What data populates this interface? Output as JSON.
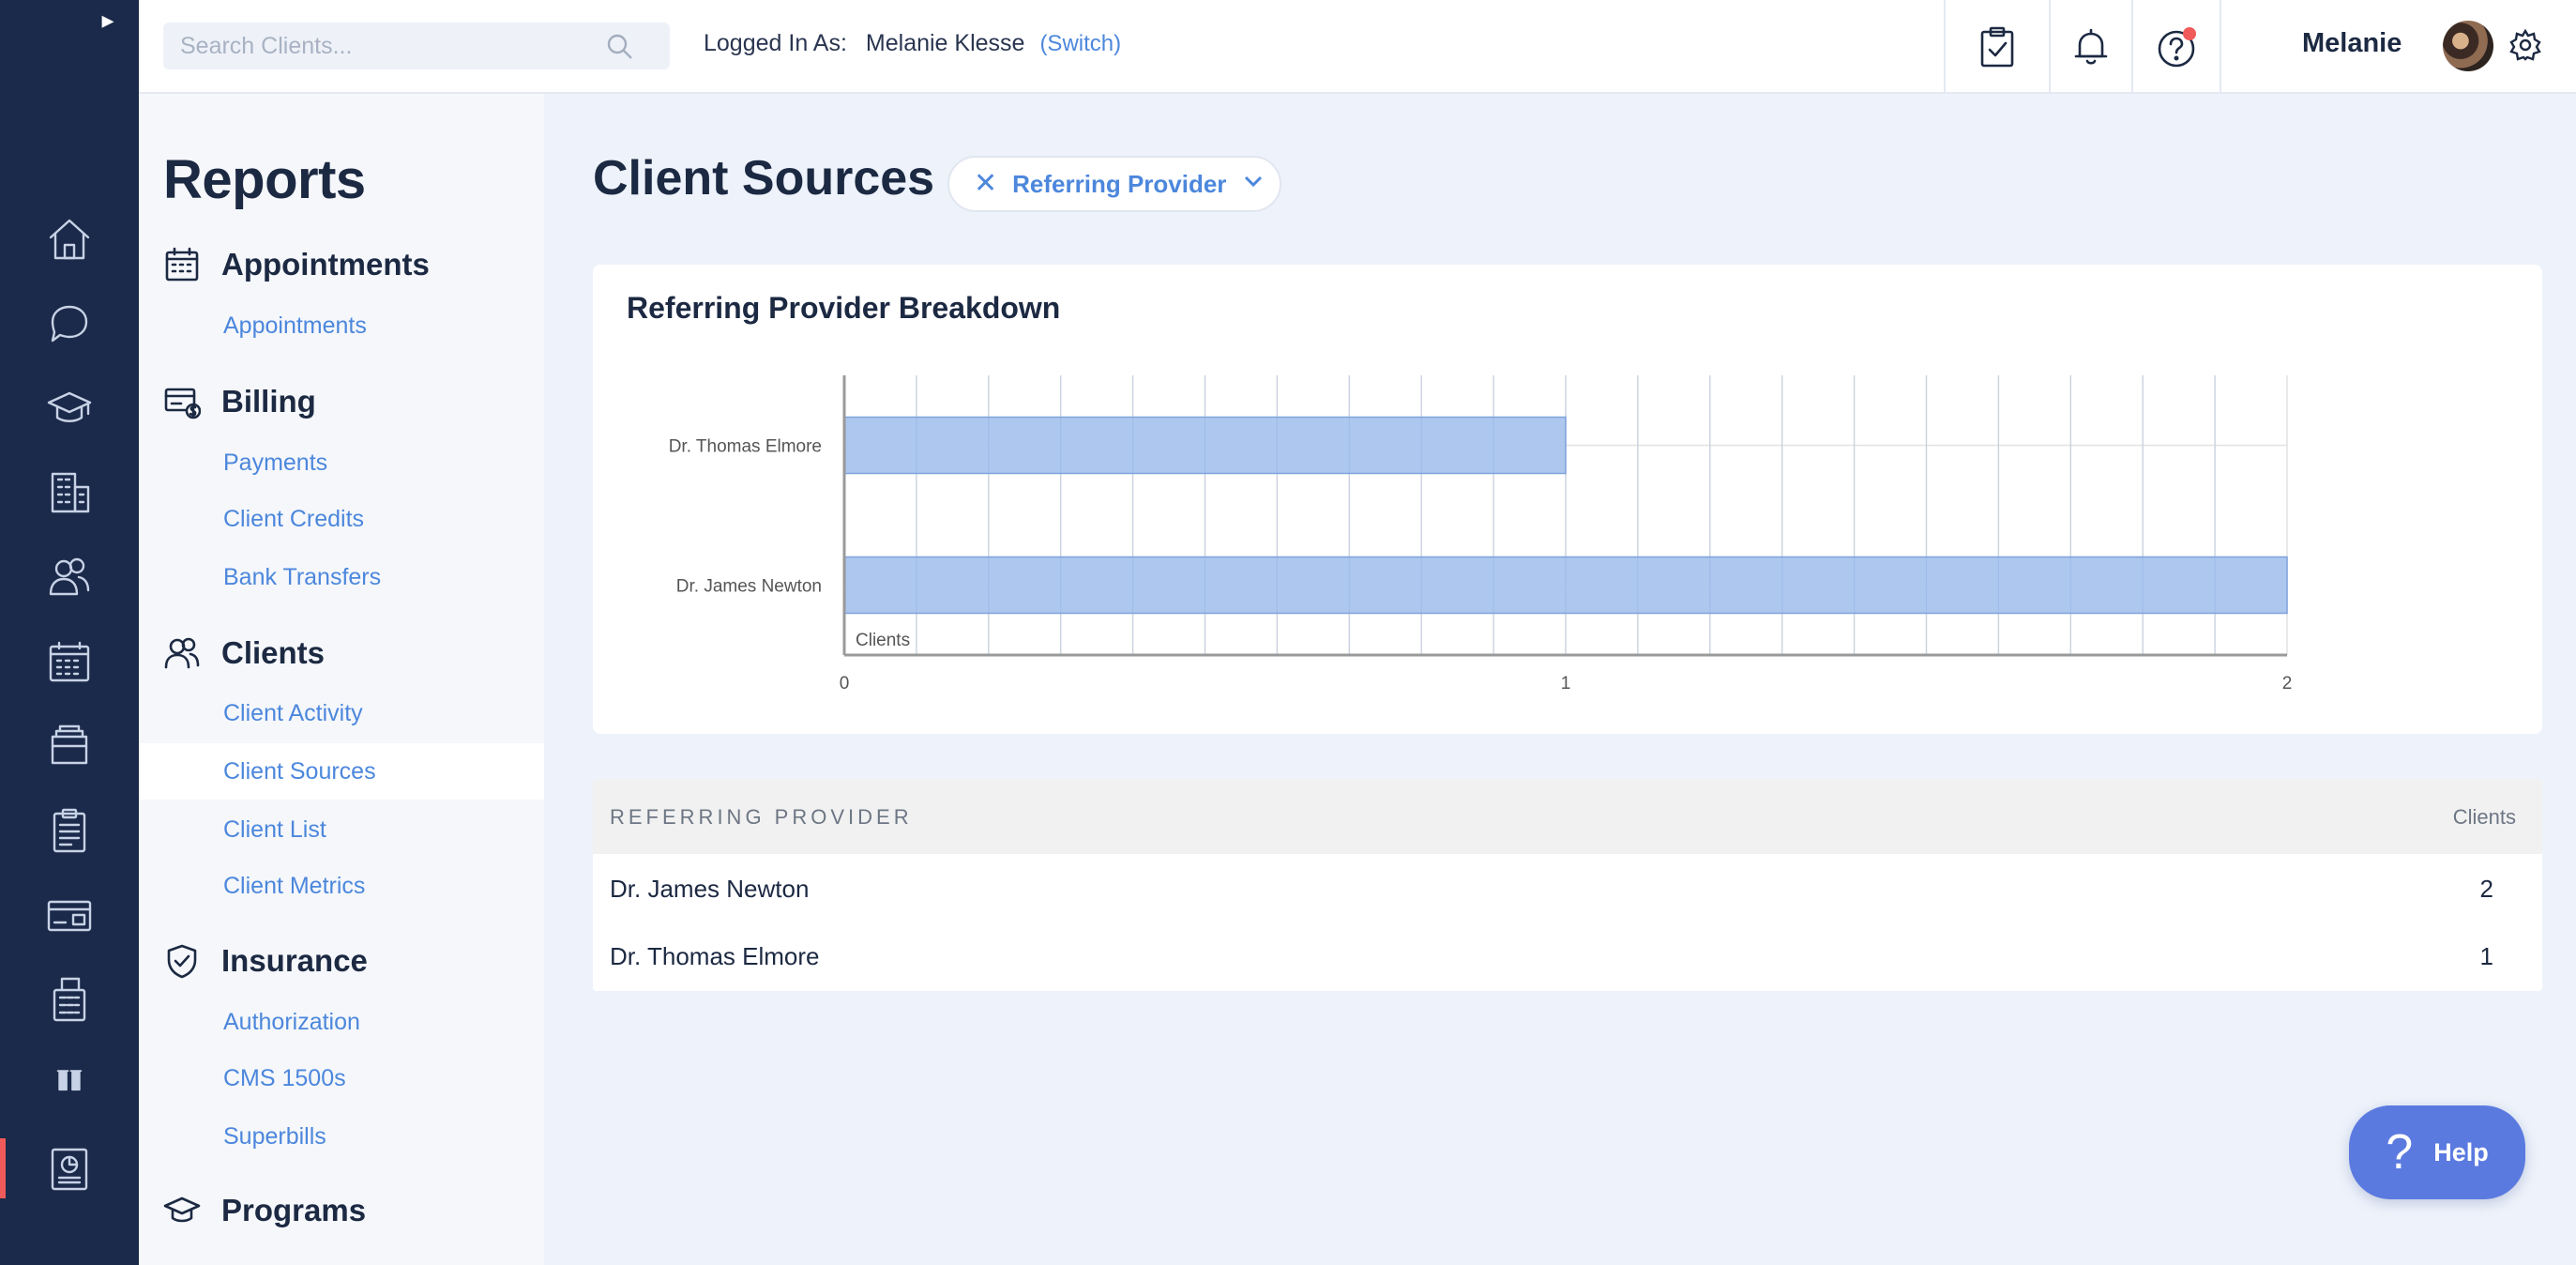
{
  "rail": {
    "icons": [
      "expand-icon",
      "home-icon",
      "chat-icon",
      "graduation-cap-icon",
      "building-icon",
      "users-icon",
      "calendar-icon",
      "folders-icon",
      "clipboard-icon",
      "card-icon",
      "fax-icon",
      "lab-icon",
      "reports-icon"
    ],
    "active": "reports-icon",
    "active_color": "#f05a5a"
  },
  "topbar": {
    "search_placeholder": "Search Clients...",
    "logged_in_label": "Logged In As:",
    "logged_in_user": "Melanie Klesse",
    "switch_label": "(Switch)",
    "user_name": "Melanie",
    "notification_dot_color": "#f05a5a"
  },
  "nav": {
    "title": "Reports",
    "sections": [
      {
        "label": "Appointments",
        "icon": "calendar-icon",
        "items": [
          "Appointments"
        ]
      },
      {
        "label": "Billing",
        "icon": "billing-icon",
        "items": [
          "Payments",
          "Client Credits",
          "Bank Transfers"
        ]
      },
      {
        "label": "Clients",
        "icon": "users-icon",
        "items": [
          "Client Activity",
          "Client Sources",
          "Client List",
          "Client Metrics"
        ]
      },
      {
        "label": "Insurance",
        "icon": "shield-check-icon",
        "items": [
          "Authorization",
          "CMS 1500s",
          "Superbills"
        ]
      },
      {
        "label": "Programs",
        "icon": "graduation-cap-icon",
        "items": []
      }
    ],
    "active_item": "Client Sources"
  },
  "main": {
    "title": "Client Sources",
    "filter_label": "Referring Provider",
    "chart_title": "Referring Provider Breakdown",
    "table": {
      "headers": [
        "REFERRING PROVIDER",
        "Clients"
      ],
      "rows": [
        [
          "Dr. James Newton",
          "2"
        ],
        [
          "Dr. Thomas Elmore",
          "1"
        ]
      ]
    },
    "help_label": "Help"
  },
  "chart_data": {
    "type": "bar",
    "orientation": "horizontal",
    "title": "Referring Provider Breakdown",
    "categories": [
      "Dr. Thomas Elmore",
      "Dr. James Newton"
    ],
    "series": [
      {
        "name": "Clients",
        "values": [
          1,
          2
        ]
      }
    ],
    "xlim": [
      0,
      2
    ],
    "x_ticks": [
      "0",
      "1",
      "2"
    ],
    "grid": true,
    "legend": "bottom-left inside plot",
    "bar_color": "#a9c4ee",
    "bar_edge_color": "#7fa3dc"
  }
}
